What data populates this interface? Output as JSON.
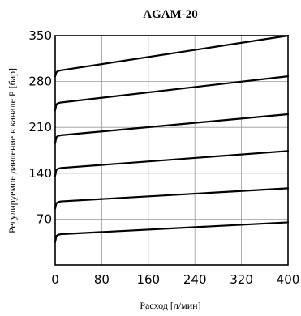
{
  "chart_data": {
    "type": "line",
    "title": "AGAM-20",
    "xlabel": "Расход [л/мин]",
    "ylabel": "Регулируемое давление в канале Р [бар]",
    "xlim": [
      0,
      400
    ],
    "ylim": [
      0,
      350
    ],
    "x_ticks": [
      "0",
      "80",
      "160",
      "240",
      "320",
      "400"
    ],
    "y_ticks": [
      "70",
      "140",
      "210",
      "280",
      "350"
    ],
    "grid": true,
    "series": [
      {
        "x": [
          0,
          2,
          5,
          10,
          400
        ],
        "y": [
          35,
          44,
          46,
          47,
          65
        ]
      },
      {
        "x": [
          0,
          2,
          5,
          10,
          400
        ],
        "y": [
          86,
          94,
          96,
          97,
          117
        ]
      },
      {
        "x": [
          0,
          2,
          5,
          10,
          400
        ],
        "y": [
          136,
          145,
          147,
          148,
          174
        ]
      },
      {
        "x": [
          0,
          2,
          5,
          10,
          400
        ],
        "y": [
          186,
          195,
          197,
          198,
          230
        ]
      },
      {
        "x": [
          0,
          2,
          5,
          10,
          400
        ],
        "y": [
          236,
          245,
          247,
          248,
          288
        ]
      },
      {
        "x": [
          0,
          2,
          5,
          10,
          400
        ],
        "y": [
          288,
          294,
          296,
          297,
          350
        ]
      }
    ]
  }
}
